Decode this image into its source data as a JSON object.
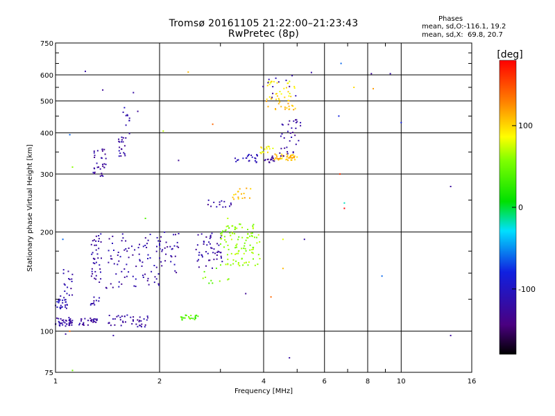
{
  "chart_data": {
    "type": "scatter",
    "title": "Tromsø 20161105 21:22:00–21:23:43",
    "subtitle": "RwPretec (8p)",
    "phase_info": {
      "heading": "Phases",
      "line1": "mean, sd,O:-116.1, 19.2",
      "line2": "mean, sd,X:  69.8, 20.7"
    },
    "xlabel": "Frequency [MHz]",
    "ylabel": "Stationary phase Virtual Height [km]",
    "x_scale": "log",
    "y_scale": "log",
    "xlim": [
      1,
      16
    ],
    "ylim": [
      75,
      750
    ],
    "x_ticks": [
      1,
      2,
      4,
      6,
      8,
      10,
      16
    ],
    "x_tick_labels": [
      "1",
      "2",
      "4",
      "6",
      "8",
      "10",
      "16"
    ],
    "y_ticks": [
      75,
      100,
      200,
      300,
      400,
      500,
      600,
      750
    ],
    "y_tick_labels": [
      "75",
      "100",
      "200",
      "300",
      "400",
      "500",
      "600",
      "750"
    ],
    "grid": true,
    "colorbar": {
      "unit": "[deg]",
      "range": [
        -180,
        180
      ],
      "ticks": [
        100,
        0,
        -100
      ],
      "tick_labels": [
        "100",
        "0",
        "-100"
      ]
    },
    "clusters": [
      {
        "x": [
          1.0,
          1.12
        ],
        "y": [
          103,
          110
        ],
        "n": 40,
        "phase": -120
      },
      {
        "x": [
          1.0,
          1.1
        ],
        "y": [
          117,
          128
        ],
        "n": 26,
        "phase": -110
      },
      {
        "x": [
          1.03,
          1.12
        ],
        "y": [
          128,
          155
        ],
        "n": 16,
        "phase": -120
      },
      {
        "x": [
          1.17,
          1.32
        ],
        "y": [
          104,
          110
        ],
        "n": 28,
        "phase": -125
      },
      {
        "x": [
          1.26,
          1.34
        ],
        "y": [
          120,
          128
        ],
        "n": 10,
        "phase": -120
      },
      {
        "x": [
          1.27,
          1.36
        ],
        "y": [
          140,
          200
        ],
        "n": 38,
        "phase": -120
      },
      {
        "x": [
          1.42,
          1.85
        ],
        "y": [
          103,
          112
        ],
        "n": 42,
        "phase": -122
      },
      {
        "x": [
          1.4,
          2.05
        ],
        "y": [
          135,
          200
        ],
        "n": 85,
        "phase": -118
      },
      {
        "x": [
          2.0,
          2.28
        ],
        "y": [
          150,
          200
        ],
        "n": 30,
        "phase": -120
      },
      {
        "x": [
          2.55,
          3.05
        ],
        "y": [
          155,
          200
        ],
        "n": 50,
        "phase": -120
      },
      {
        "x": [
          2.3,
          2.6
        ],
        "y": [
          108,
          112
        ],
        "n": 24,
        "phase": 40
      },
      {
        "x": [
          3.0,
          3.9
        ],
        "y": [
          158,
          212
        ],
        "n": 110,
        "phase": 60
      },
      {
        "x": [
          2.6,
          3.2
        ],
        "y": [
          138,
          156
        ],
        "n": 10,
        "phase": 50
      },
      {
        "x": [
          1.28,
          1.4
        ],
        "y": [
          295,
          360
        ],
        "n": 32,
        "phase": -122
      },
      {
        "x": [
          1.52,
          1.6
        ],
        "y": [
          340,
          390
        ],
        "n": 20,
        "phase": -120
      },
      {
        "x": [
          1.56,
          1.64
        ],
        "y": [
          390,
          480
        ],
        "n": 10,
        "phase": -110
      },
      {
        "x": [
          2.75,
          3.25
        ],
        "y": [
          238,
          250
        ],
        "n": 14,
        "phase": -120
      },
      {
        "x": [
          3.25,
          3.7
        ],
        "y": [
          248,
          272
        ],
        "n": 16,
        "phase": 110
      },
      {
        "x": [
          3.3,
          3.9
        ],
        "y": [
          325,
          345
        ],
        "n": 22,
        "phase": -110
      },
      {
        "x": [
          4.0,
          4.3
        ],
        "y": [
          325,
          340
        ],
        "n": 16,
        "phase": -125
      },
      {
        "x": [
          3.9,
          4.3
        ],
        "y": [
          345,
          365
        ],
        "n": 14,
        "phase": 90
      },
      {
        "x": [
          4.3,
          5.0
        ],
        "y": [
          330,
          345
        ],
        "n": 44,
        "phase": 110
      },
      {
        "x": [
          4.45,
          5.15
        ],
        "y": [
          340,
          440
        ],
        "n": 34,
        "phase": -125
      },
      {
        "x": [
          4.05,
          4.95
        ],
        "y": [
          470,
          510
        ],
        "n": 26,
        "phase": 110
      },
      {
        "x": [
          4.1,
          4.95
        ],
        "y": [
          510,
          575
        ],
        "n": 26,
        "phase": 90
      },
      {
        "x": [
          3.9,
          5.0
        ],
        "y": [
          500,
          600
        ],
        "n": 12,
        "phase": -120
      }
    ],
    "points": [
      {
        "x": 1.22,
        "y": 615,
        "phase": -120
      },
      {
        "x": 1.37,
        "y": 540,
        "phase": -130
      },
      {
        "x": 1.68,
        "y": 530,
        "phase": -120
      },
      {
        "x": 1.73,
        "y": 465,
        "phase": -130
      },
      {
        "x": 2.42,
        "y": 612,
        "phase": 110
      },
      {
        "x": 2.27,
        "y": 330,
        "phase": -130
      },
      {
        "x": 2.05,
        "y": 405,
        "phase": 70
      },
      {
        "x": 2.85,
        "y": 425,
        "phase": 140
      },
      {
        "x": 1.1,
        "y": 395,
        "phase": -60
      },
      {
        "x": 1.12,
        "y": 315,
        "phase": 60
      },
      {
        "x": 1.07,
        "y": 98,
        "phase": -120
      },
      {
        "x": 1.1,
        "y": 100,
        "phase": 140
      },
      {
        "x": 1.12,
        "y": 76,
        "phase": 50
      },
      {
        "x": 1.47,
        "y": 97,
        "phase": -120
      },
      {
        "x": 1.05,
        "y": 190,
        "phase": -60
      },
      {
        "x": 1.82,
        "y": 220,
        "phase": 40
      },
      {
        "x": 4.75,
        "y": 83,
        "phase": -120
      },
      {
        "x": 4.2,
        "y": 127,
        "phase": 140
      },
      {
        "x": 3.55,
        "y": 130,
        "phase": -130
      },
      {
        "x": 4.55,
        "y": 155,
        "phase": 110
      },
      {
        "x": 5.25,
        "y": 190,
        "phase": -120
      },
      {
        "x": 6.7,
        "y": 650,
        "phase": -60
      },
      {
        "x": 6.6,
        "y": 450,
        "phase": -80
      },
      {
        "x": 6.65,
        "y": 300,
        "phase": 160
      },
      {
        "x": 6.85,
        "y": 245,
        "phase": -20
      },
      {
        "x": 6.85,
        "y": 236,
        "phase": 180
      },
      {
        "x": 7.3,
        "y": 550,
        "phase": 100
      },
      {
        "x": 8.2,
        "y": 605,
        "phase": -130
      },
      {
        "x": 8.3,
        "y": 545,
        "phase": 120
      },
      {
        "x": 9.3,
        "y": 605,
        "phase": -120
      },
      {
        "x": 10.0,
        "y": 430,
        "phase": -80
      },
      {
        "x": 8.8,
        "y": 147,
        "phase": -60
      },
      {
        "x": 13.9,
        "y": 275,
        "phase": -125
      },
      {
        "x": 13.9,
        "y": 97,
        "phase": -125
      },
      {
        "x": 5.5,
        "y": 610,
        "phase": -120
      },
      {
        "x": 4.55,
        "y": 190,
        "phase": 80
      },
      {
        "x": 3.15,
        "y": 220,
        "phase": 70
      }
    ]
  }
}
